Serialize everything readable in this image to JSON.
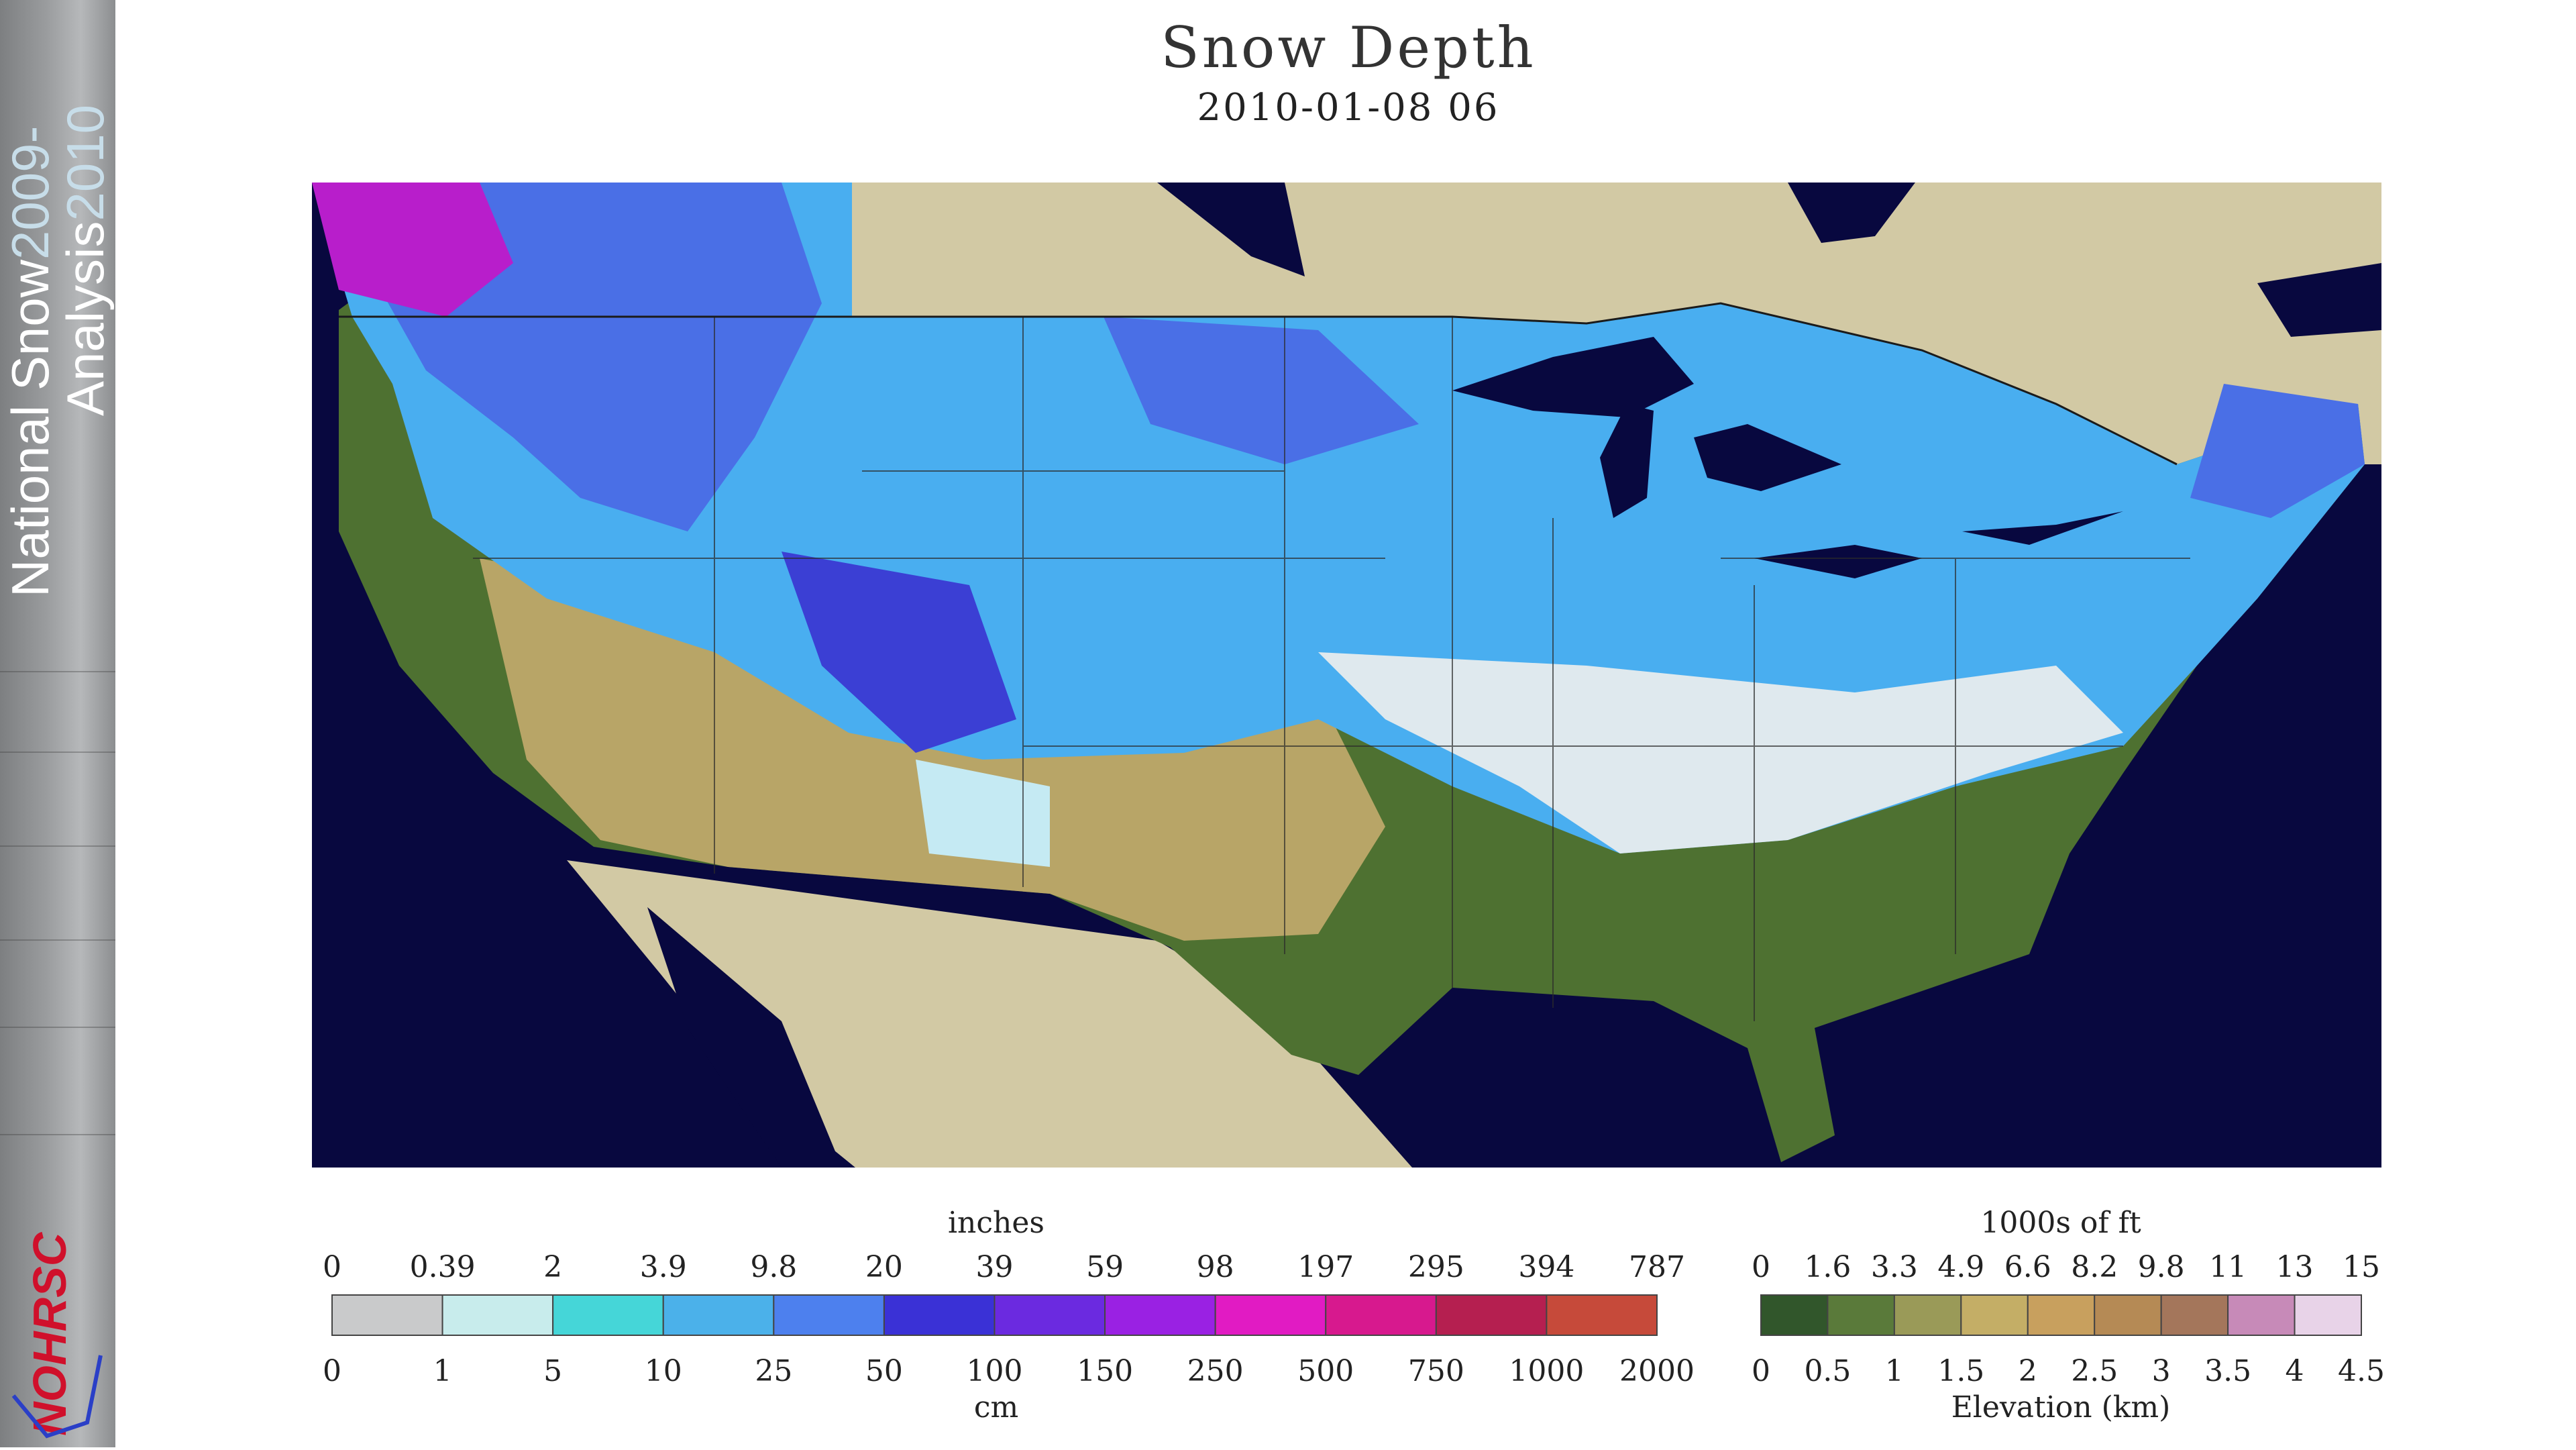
{
  "sidebar": {
    "line1_a": "National Snow",
    "line1_b": "2009-",
    "line2_a": "Analysis",
    "line2_b": "2010",
    "logo_text": "NOHRSC"
  },
  "header": {
    "title": "Snow Depth",
    "date": "2010-01-08 06"
  },
  "snow_legend": {
    "title_top": "inches",
    "title_bottom": "cm",
    "inches": [
      "0",
      "0.39",
      "2",
      "3.9",
      "9.8",
      "20",
      "39",
      "59",
      "98",
      "197",
      "295",
      "394",
      "787"
    ],
    "cm": [
      "0",
      "1",
      "5",
      "10",
      "25",
      "50",
      "100",
      "150",
      "250",
      "500",
      "750",
      "1000",
      "2000"
    ],
    "colors": [
      "#c9cacb",
      "#c8ecec",
      "#45d6d8",
      "#4bb1ea",
      "#4d80ee",
      "#3a31d6",
      "#6b2ae0",
      "#9a21e3",
      "#e11bc3",
      "#d7198e",
      "#b51f50",
      "#c64a3a"
    ]
  },
  "elev_legend": {
    "title_top": "1000s of ft",
    "title_bottom": "Elevation (km)",
    "feet": [
      "0",
      "1.6",
      "3.3",
      "4.9",
      "6.6",
      "8.2",
      "9.8",
      "11",
      "13",
      "15"
    ],
    "km": [
      "0",
      "0.5",
      "1",
      "1.5",
      "2",
      "2.5",
      "3",
      "3.5",
      "4",
      "4.5"
    ],
    "colors": [
      "#31562b",
      "#5a7a3a",
      "#9a9a58",
      "#c4ae66",
      "#c8a05e",
      "#b58a55",
      "#a4765b",
      "#c78ab8",
      "#e8d3e8"
    ]
  }
}
